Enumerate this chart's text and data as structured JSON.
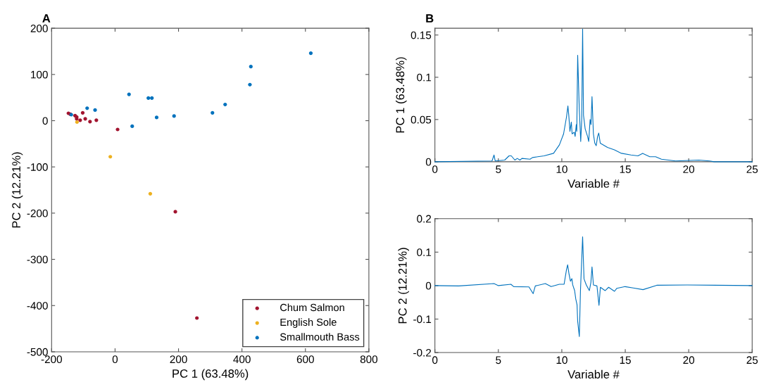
{
  "chart_data": [
    {
      "type": "scatter",
      "title": "A",
      "xlabel": "PC 1 (63.48%)",
      "ylabel": "PC 2 (12.21%)",
      "xlim": [
        -200,
        800
      ],
      "xticks": [
        -200,
        0,
        200,
        400,
        600,
        800
      ],
      "ylim": [
        -500,
        200
      ],
      "yticks": [
        -500,
        -400,
        -300,
        -200,
        -100,
        0,
        100,
        200
      ],
      "grid": false,
      "legend": "bottom right",
      "marker": "circle",
      "series": [
        {
          "name": "Chum Salmon",
          "color": "#a2142f",
          "x": [
            -147,
            -141,
            -126,
            -121,
            -121,
            -102,
            -94,
            -110,
            -79,
            -59,
            8,
            190,
            258
          ],
          "values": [
            16,
            14,
            11,
            8,
            4,
            17,
            4,
            1,
            -2,
            1,
            -19,
            -197,
            -427
          ]
        },
        {
          "name": "English Sole",
          "color": "#edb120",
          "x": [
            -120,
            -15,
            111
          ],
          "values": [
            -3,
            -78,
            -158
          ]
        },
        {
          "name": "Smallmouth Bass",
          "color": "#0072bd",
          "x": [
            617,
            428,
            425,
            347,
            307,
            186,
            131,
            116,
            105,
            44,
            54,
            -63,
            -88,
            -138
          ],
          "values": [
            146,
            117,
            78,
            35,
            17,
            10,
            7,
            49,
            49,
            57,
            -12,
            23,
            27,
            13
          ]
        }
      ]
    },
    {
      "type": "line",
      "title": "B",
      "xlabel": "Variable #",
      "ylabel": "PC 1 (63.48%)",
      "xlim": [
        0,
        25
      ],
      "xticks": [
        0,
        5,
        10,
        15,
        20,
        25
      ],
      "ylim": [
        0,
        0.158
      ],
      "yticks": [
        0,
        0.05,
        0.1,
        0.15
      ],
      "grid": false,
      "line_style": "solid",
      "marker": "none",
      "series": [
        {
          "color": "#0072bd",
          "x": [
            0,
            4.5,
            4.66,
            4.75,
            5.5,
            5.84,
            6.02,
            6.3,
            6.49,
            6.7,
            6.86,
            7.5,
            7.69,
            8.6,
            9.35,
            9.81,
            10.14,
            10.37,
            10.48,
            10.55,
            10.64,
            10.75,
            10.81,
            10.98,
            11.05,
            11.14,
            11.18,
            11.25,
            11.38,
            11.49,
            11.57,
            11.64,
            11.71,
            11.84,
            12.03,
            12.12,
            12.23,
            12.3,
            12.38,
            12.49,
            12.6,
            12.71,
            12.82,
            12.91,
            13.03,
            13.6,
            14.15,
            14.7,
            15.45,
            16.0,
            16.37,
            16.93,
            17.39,
            17.85,
            18.96,
            20.8,
            21.64,
            22,
            25
          ],
          "values": [
            0,
            0.001,
            0.008,
            0.001,
            0.002,
            0.007,
            0.007,
            0.002,
            0.004,
            0.002,
            0.004,
            0.003,
            0.005,
            0.007,
            0.01,
            0.02,
            0.033,
            0.053,
            0.066,
            0.055,
            0.036,
            0.047,
            0.033,
            0.035,
            0.03,
            0.044,
            0.036,
            0.126,
            0.061,
            0.024,
            0.05,
            0.157,
            0.055,
            0.039,
            0.03,
            0.024,
            0.05,
            0.044,
            0.077,
            0.033,
            0.022,
            0.019,
            0.03,
            0.034,
            0.022,
            0.017,
            0.014,
            0.01,
            0.008,
            0.007,
            0.01,
            0.006,
            0.006,
            0.003,
            0.001,
            0.002,
            0.001,
            0,
            0
          ]
        }
      ]
    },
    {
      "type": "line",
      "xlabel": "Variable #",
      "ylabel": "PC 2 (12.21%)",
      "xlim": [
        0,
        25
      ],
      "xticks": [
        0,
        5,
        10,
        15,
        20,
        25
      ],
      "ylim": [
        -0.2,
        0.2
      ],
      "yticks": [
        -0.2,
        -0.1,
        0,
        0.1,
        0.2
      ],
      "grid": false,
      "line_style": "solid",
      "marker": "none",
      "series": [
        {
          "color": "#0072bd",
          "x": [
            0,
            1.87,
            4.66,
            5,
            5.99,
            6.21,
            7.41,
            7.74,
            7.91,
            8.7,
            9.16,
            9.81,
            10.18,
            10.37,
            10.46,
            10.57,
            10.68,
            10.79,
            10.86,
            11.01,
            11.1,
            11.2,
            11.25,
            11.38,
            11.47,
            11.64,
            11.75,
            11.93,
            12.17,
            12.29,
            12.38,
            12.49,
            12.77,
            12.93,
            13.04,
            13.41,
            13.69,
            14.15,
            14.34,
            14.99,
            15.63,
            16.4,
            17.48,
            19.88,
            25
          ],
          "values": [
            0,
            -0.001,
            0.006,
            0,
            0.004,
            -0.003,
            -0.004,
            -0.024,
            -0.001,
            0.006,
            -0.003,
            0.004,
            0.004,
            0.048,
            0.062,
            0.034,
            0.013,
            0.021,
            0.002,
            -0.015,
            -0.04,
            -0.057,
            -0.106,
            -0.152,
            -0.015,
            0.146,
            0.02,
            0.002,
            -0.015,
            0.009,
            0.056,
            0.002,
            -0.001,
            -0.059,
            -0.005,
            -0.015,
            -0.005,
            -0.017,
            -0.008,
            -0.003,
            -0.007,
            -0.012,
            0.001,
            0.002,
            0
          ]
        }
      ]
    }
  ]
}
